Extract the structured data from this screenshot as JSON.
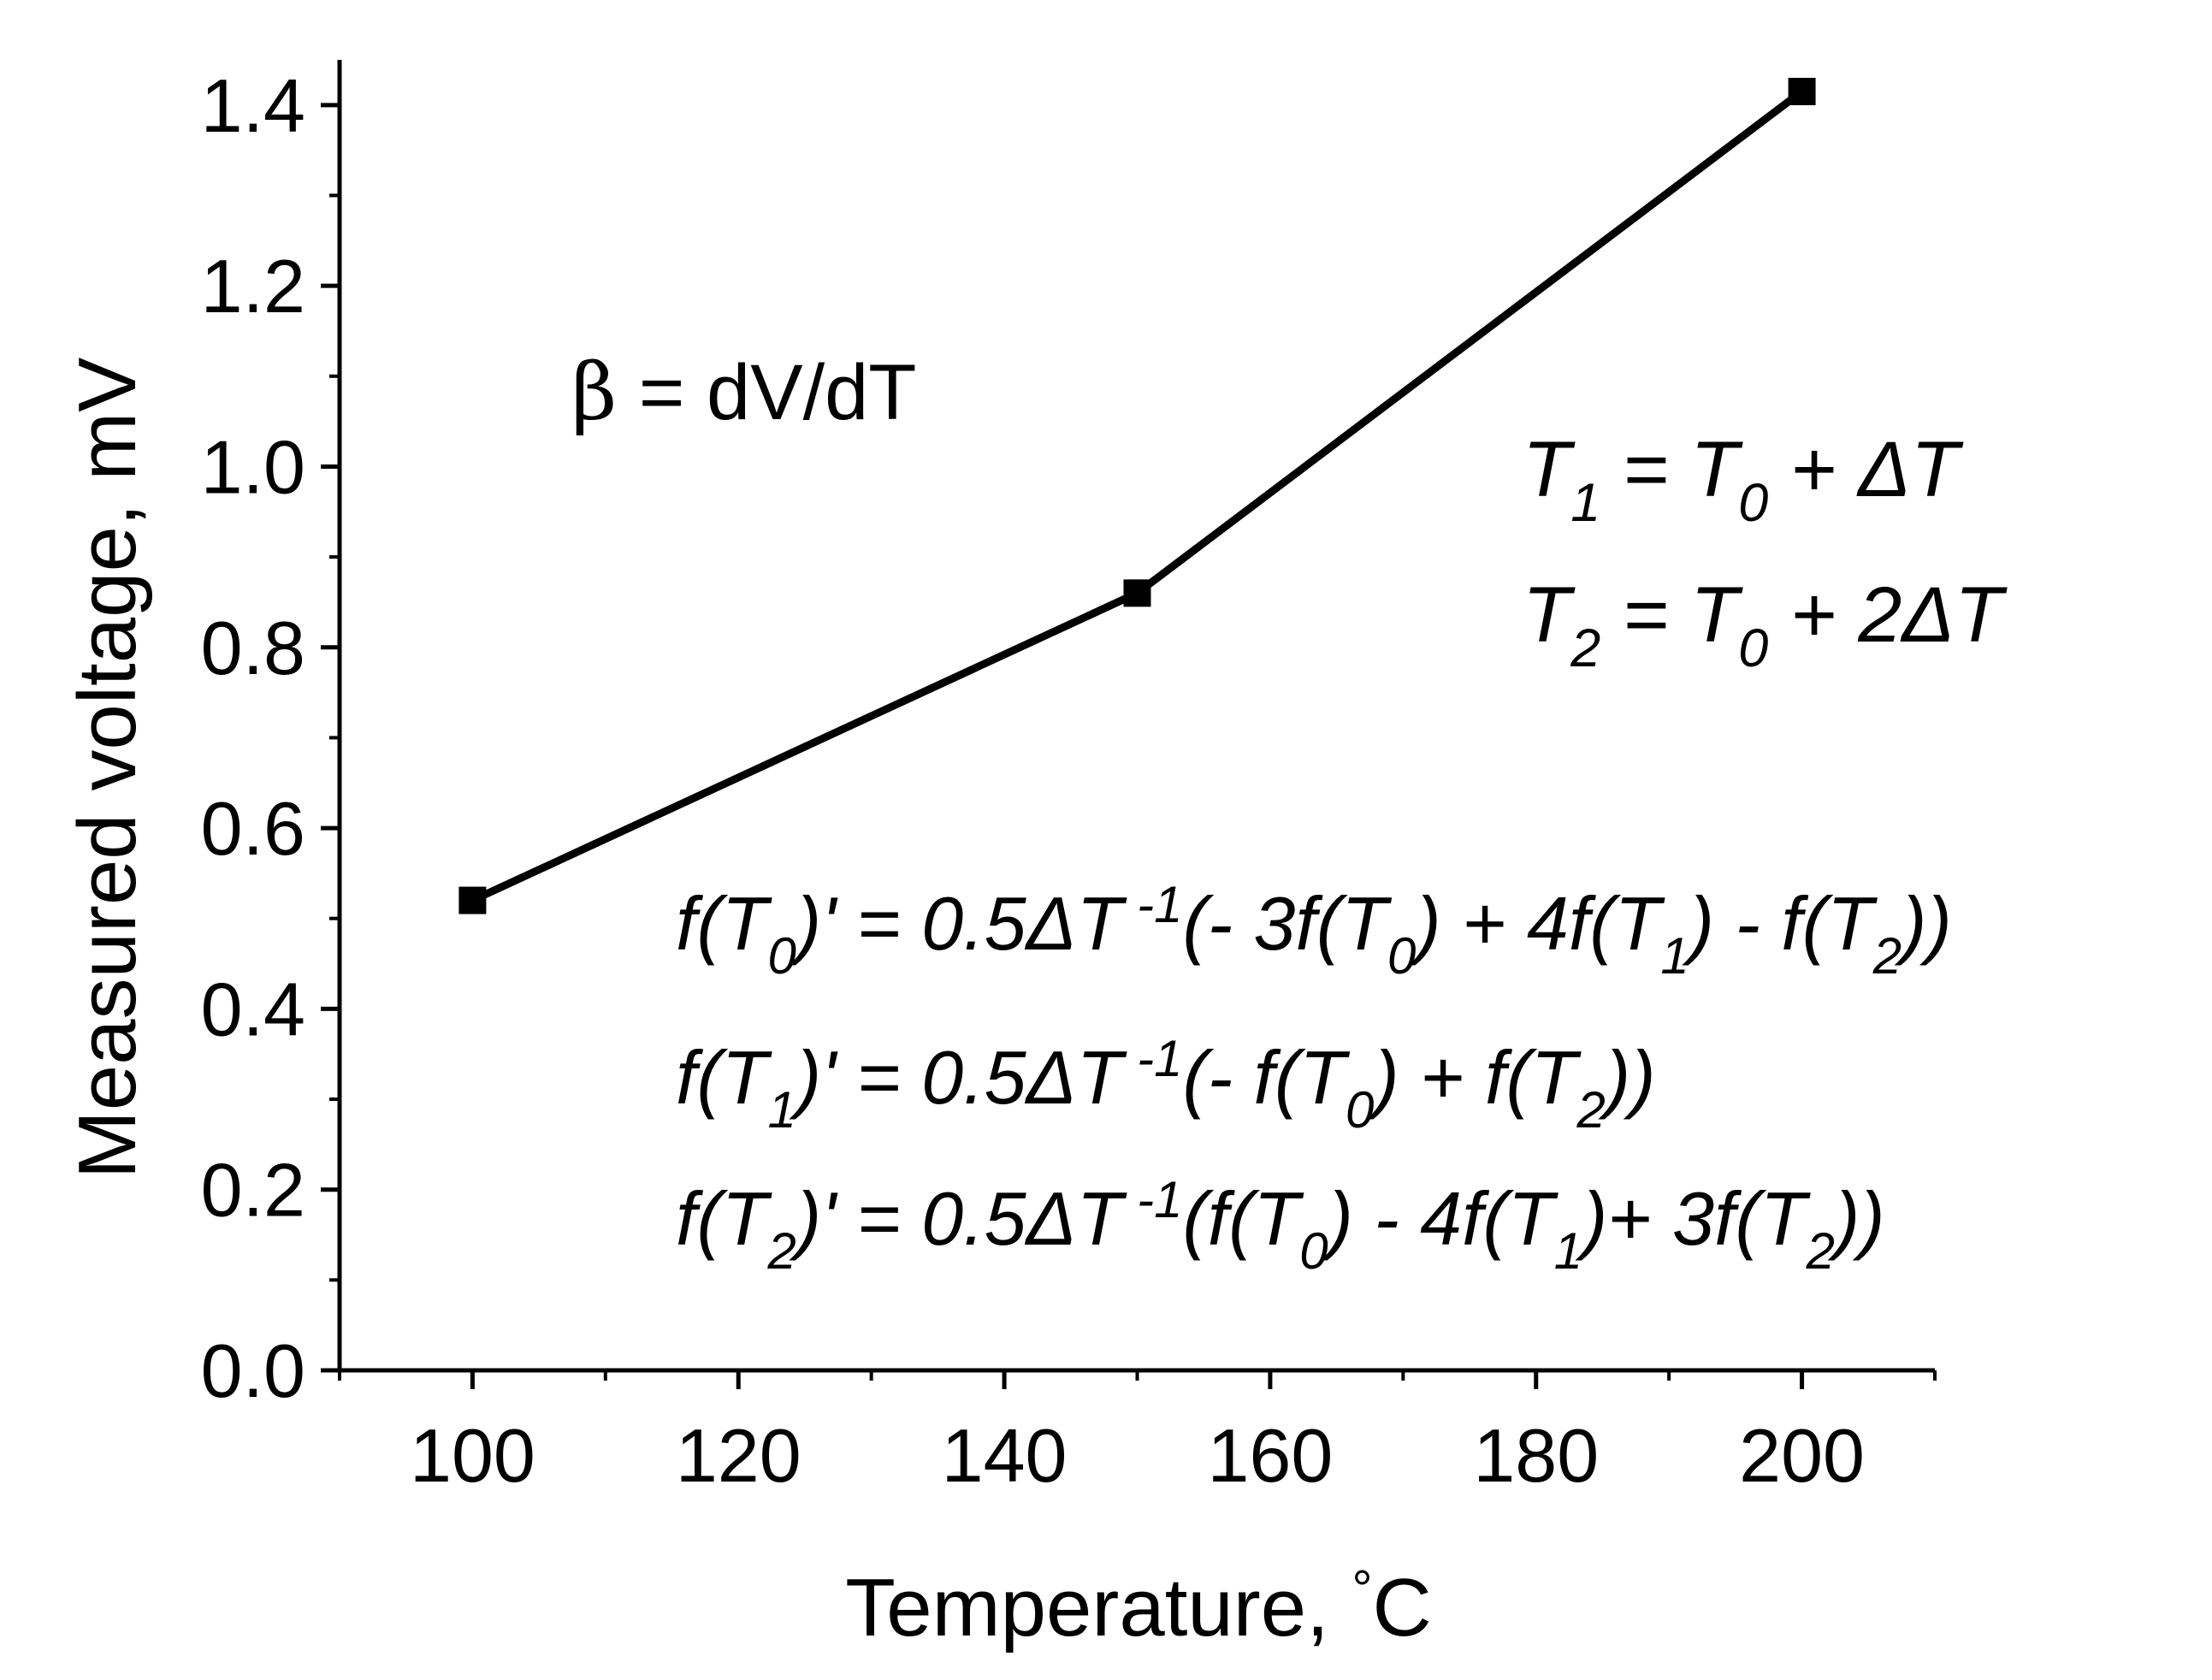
{
  "chart_data": {
    "type": "line",
    "title": "",
    "xlabel": "Temperature, °C",
    "xlabel_parts": {
      "text": "Temperature, ",
      "degree": "°",
      "unit": "C"
    },
    "ylabel": "Measured voltage, mV",
    "xlim": [
      90,
      210
    ],
    "ylim": [
      0,
      1.45
    ],
    "x_ticks": [
      100,
      120,
      140,
      160,
      180,
      200
    ],
    "x_tick_labels": [
      "100",
      "120",
      "140",
      "160",
      "180",
      "200"
    ],
    "y_ticks": [
      0.0,
      0.2,
      0.4,
      0.6,
      0.8,
      1.0,
      1.2,
      1.4
    ],
    "y_tick_labels": [
      "0.0",
      "0.2",
      "0.4",
      "0.6",
      "0.8",
      "1.0",
      "1.2",
      "1.4"
    ],
    "grid": false,
    "series": [
      {
        "name": "Measured voltage",
        "marker": "square",
        "color": "#000000",
        "x": [
          100,
          150,
          200
        ],
        "y": [
          0.52,
          0.86,
          1.415
        ]
      }
    ]
  },
  "annotations": {
    "beta": {
      "symbol": "β",
      "rest": " = dV/dT"
    },
    "t1": [
      {
        "t": "T"
      },
      {
        "t": "1",
        "sub": true
      },
      {
        "t": " = T"
      },
      {
        "t": "0",
        "sub": true
      },
      {
        "t": " + ΔT"
      }
    ],
    "t2": [
      {
        "t": "T"
      },
      {
        "t": "2",
        "sub": true
      },
      {
        "t": " = T"
      },
      {
        "t": "0",
        "sub": true
      },
      {
        "t": " + 2ΔT"
      }
    ],
    "eq0": [
      {
        "t": "f(T"
      },
      {
        "t": "0",
        "sub": true
      },
      {
        "t": ")' = 0.5ΔT"
      },
      {
        "t": " -1",
        "sup": true
      },
      {
        "t": "(- 3f(T"
      },
      {
        "t": "0",
        "sub": true
      },
      {
        "t": ") + 4f(T"
      },
      {
        "t": "1",
        "sub": true
      },
      {
        "t": ") - f(T"
      },
      {
        "t": "2",
        "sub": true
      },
      {
        "t": "))"
      }
    ],
    "eq1": [
      {
        "t": "f(T"
      },
      {
        "t": "1",
        "sub": true
      },
      {
        "t": ")' = 0.5ΔT"
      },
      {
        "t": " -1",
        "sup": true
      },
      {
        "t": "(- f(T"
      },
      {
        "t": "0",
        "sub": true
      },
      {
        "t": ") + f(T"
      },
      {
        "t": "2",
        "sub": true
      },
      {
        "t": "))"
      }
    ],
    "eq2": [
      {
        "t": "f(T"
      },
      {
        "t": "2",
        "sub": true
      },
      {
        "t": ")' = 0.5ΔT"
      },
      {
        "t": " -1",
        "sup": true
      },
      {
        "t": "(f(T"
      },
      {
        "t": "0",
        "sub": true
      },
      {
        "t": ") - 4f(T"
      },
      {
        "t": "1",
        "sub": true
      },
      {
        "t": ")+ 3f(T"
      },
      {
        "t": "2",
        "sub": true
      },
      {
        "t": "))"
      }
    ]
  }
}
